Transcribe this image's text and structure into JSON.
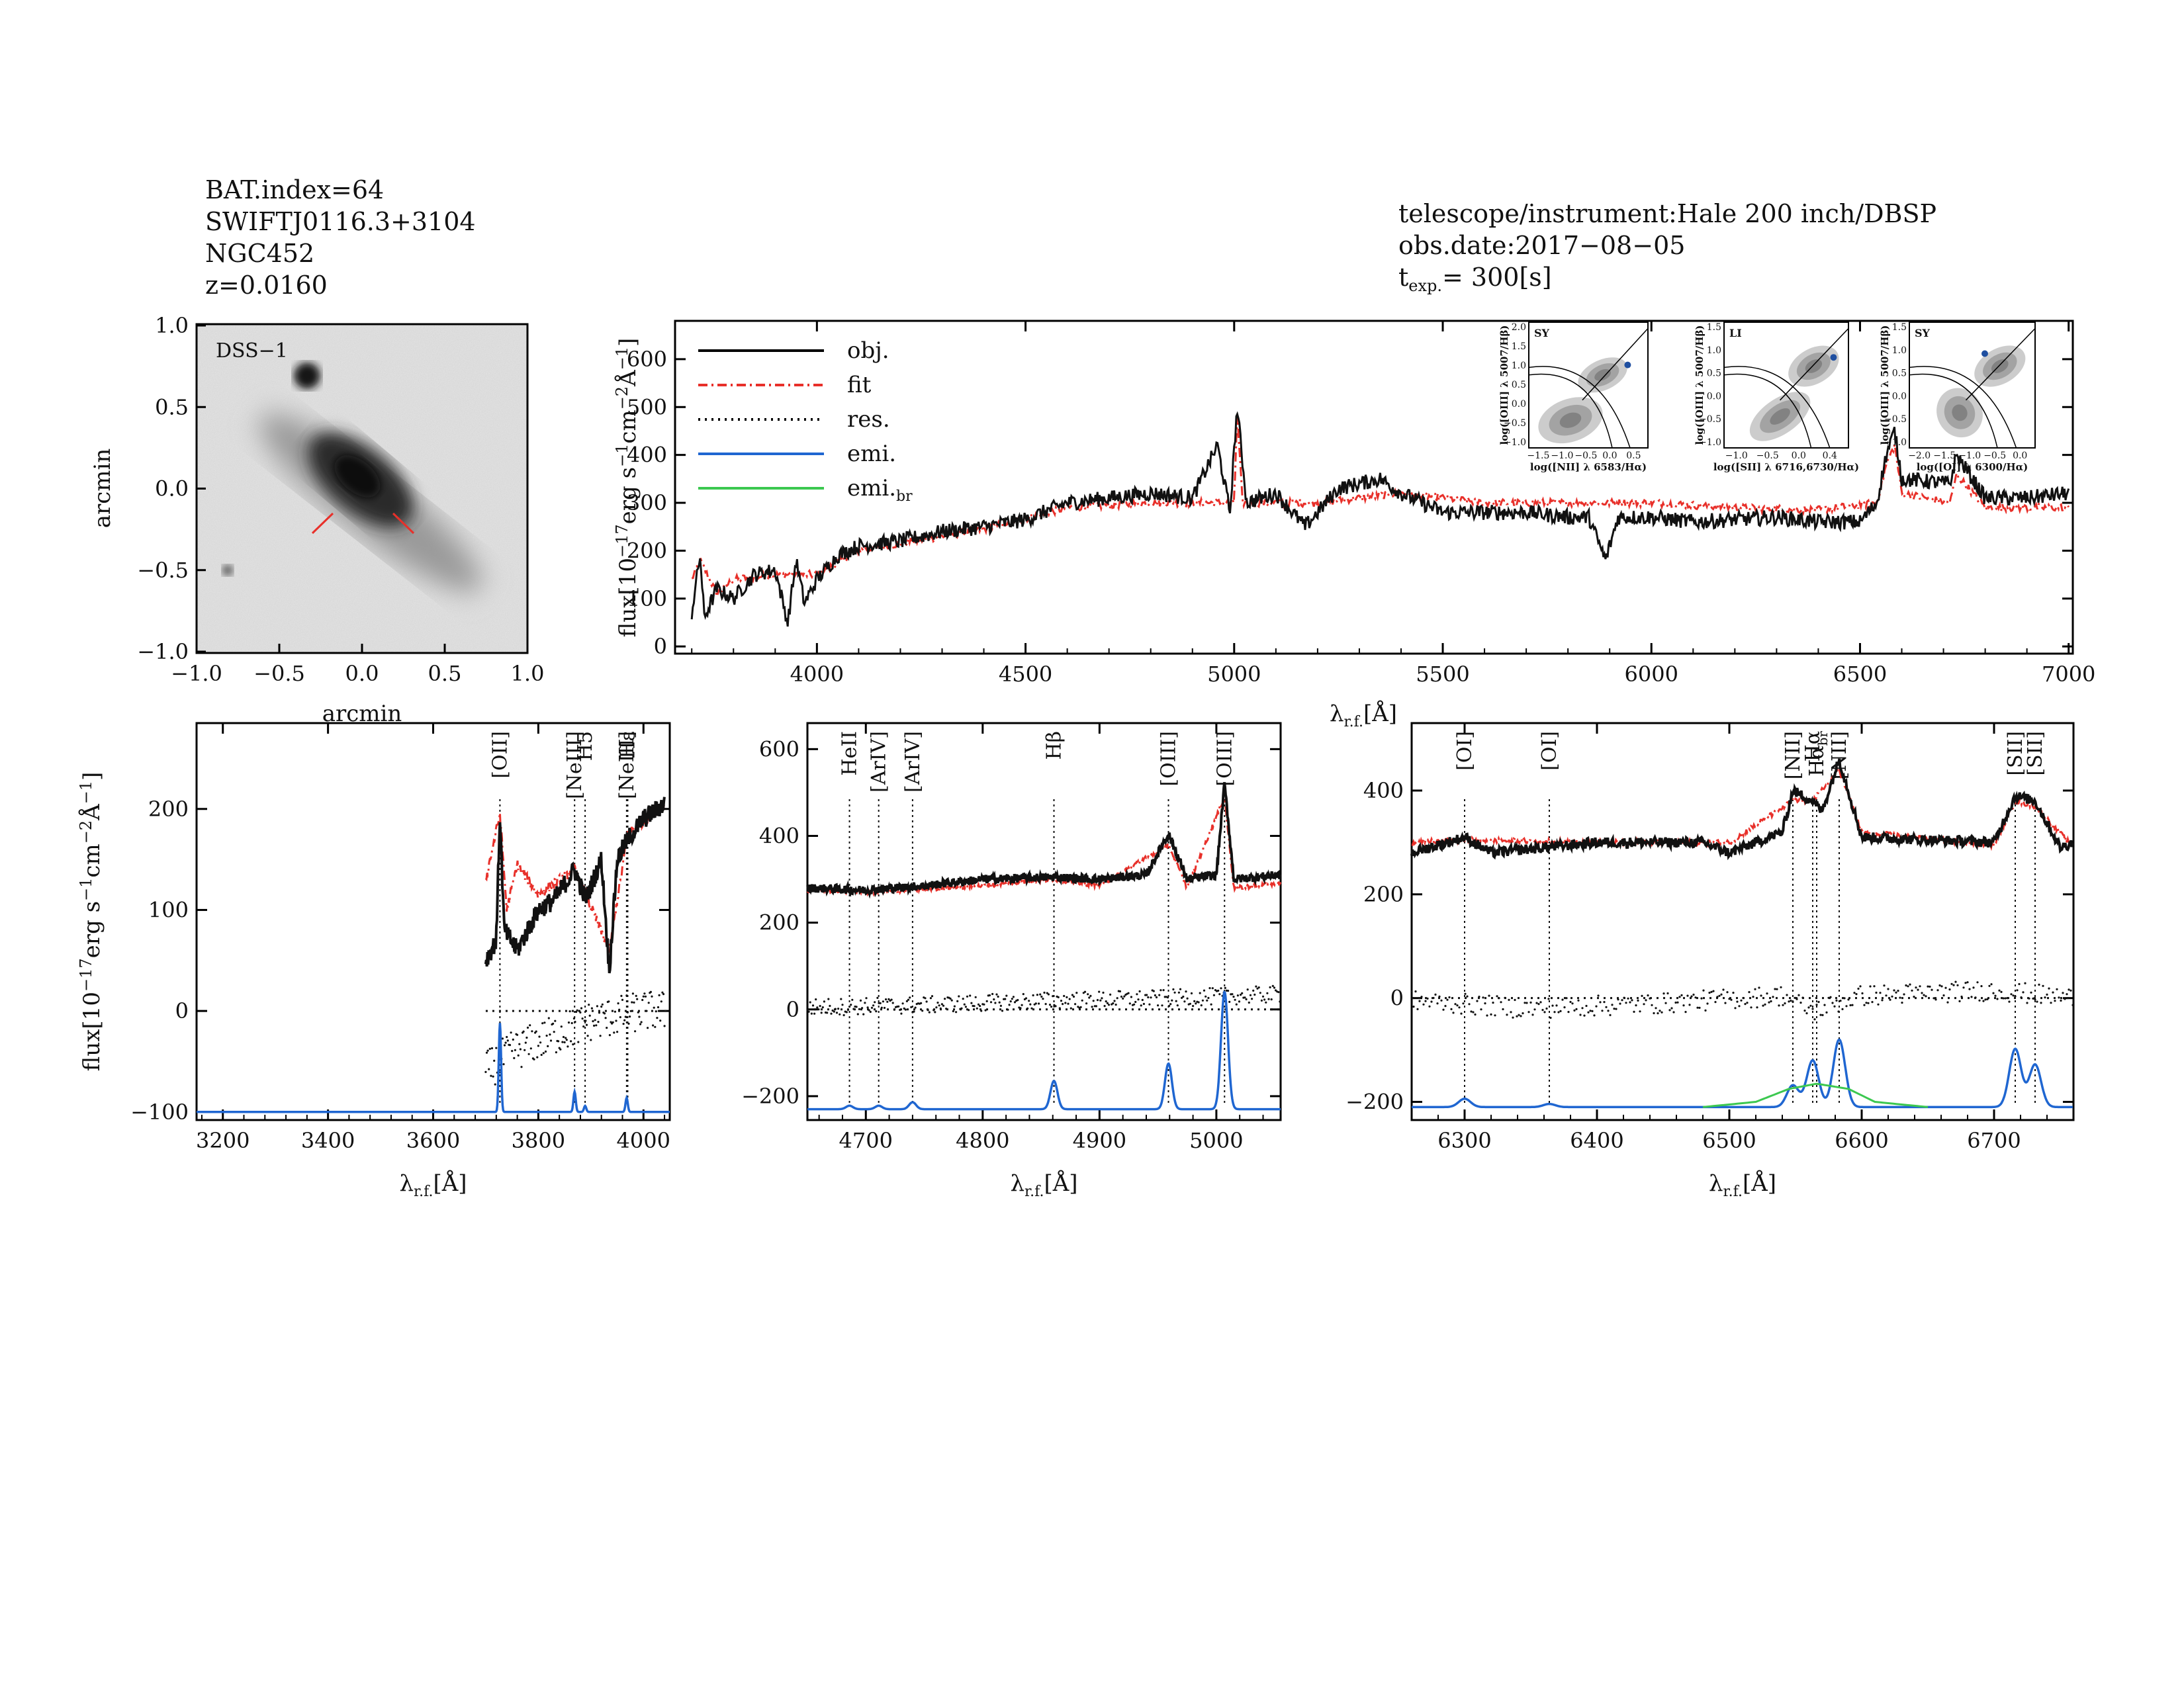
{
  "header": {
    "left": [
      "BAT.index=64",
      "SWIFTJ0116.3+3104",
      "NGC452",
      "z=0.0160"
    ],
    "right_1": "telescope/instrument:Hale 200 inch/DBSP",
    "right_2": "obs.date:2017−08−05",
    "texp_label": "t",
    "texp_sub": "exp.",
    "texp_value": "=  300[s]"
  },
  "image_panel": {
    "label": "DSS−1",
    "xlabel": "arcmin",
    "ylabel": "arcmin",
    "xticks": [
      "−1.0",
      "−0.5",
      "0.0",
      "0.5",
      "1.0"
    ],
    "yticks": [
      "1.0",
      "0.5",
      "0.0",
      "−0.5",
      "−1.0"
    ],
    "slit_color": "#e8302a"
  },
  "axis_labels": {
    "flux": "flux[10",
    "flux_exp": "−17",
    "flux_rest": "erg  s",
    "flux_unit_tail": "cm",
    "lambda": "λ",
    "lambda_sub": "r.f.",
    "lambda_unit": "[Å]"
  },
  "legend": [
    {
      "label": "obj.",
      "color": "#000000",
      "style": "solid"
    },
    {
      "label": "fit",
      "color": "#e8302a",
      "style": "dashdot"
    },
    {
      "label": "res.",
      "color": "#000000",
      "style": "dotted"
    },
    {
      "label": "emi.",
      "color": "#1f66d1",
      "style": "solid"
    },
    {
      "label": "emi.br",
      "color": "#3cc850",
      "style": "solid"
    }
  ],
  "bpt_insets": [
    {
      "tag": "SY",
      "xlabel": "log([NII] λ 6583/Hα)",
      "ylabel": "log([OIII] λ 5007/Hβ)",
      "xticks": [
        "−1.5",
        "−1.0",
        "−0.5",
        "0.0",
        "0.5"
      ],
      "yticks": [
        "2.0",
        "1.5",
        "1.0",
        "0.5",
        "0.0",
        "−0.5",
        "−1.0"
      ]
    },
    {
      "tag": "LI",
      "xlabel": "log([SII] λ 6716,6730/Hα)",
      "ylabel": "log([OIII] λ 5007/Hβ)",
      "xticks": [
        "−1.0",
        "−0.5",
        "0.0",
        "0.4"
      ],
      "yticks": [
        "1.5",
        "1.0",
        "0.5",
        "0.0",
        "−0.5",
        "−1.0"
      ]
    },
    {
      "tag": "SY",
      "xlabel": "log([OI] λ 6300/Hα)",
      "ylabel": "log([OIII] λ 5007/Hβ)",
      "xticks": [
        "−2.0",
        "−1.5",
        "−1.0",
        "−0.5",
        "0.0"
      ],
      "yticks": [
        "1.5",
        "1.0",
        "0.5",
        "0.0",
        "−0.5",
        "−1.0"
      ]
    }
  ],
  "chart_data": [
    {
      "type": "line",
      "xlim": [
        3660,
        7010
      ],
      "ylim": [
        -15,
        680
      ],
      "xticks": [
        4000,
        4500,
        5000,
        5500,
        6000,
        6500,
        7000
      ],
      "yticks": [
        0,
        100,
        200,
        300,
        400,
        500,
        600
      ],
      "series": [
        {
          "name": "obj.",
          "x": [
            3700,
            3720,
            3730,
            3760,
            3800,
            3850,
            3900,
            3930,
            3950,
            3970,
            4000,
            4050,
            4100,
            4200,
            4300,
            4400,
            4500,
            4600,
            4700,
            4800,
            4900,
            4960,
            4990,
            5007,
            5030,
            5100,
            5170,
            5250,
            5300,
            5350,
            5400,
            5450,
            5500,
            5600,
            5700,
            5800,
            5850,
            5890,
            5920,
            6000,
            6100,
            6200,
            6300,
            6400,
            6500,
            6540,
            6563,
            6583,
            6600,
            6716,
            6731,
            6800,
            6900,
            7000
          ],
          "y": [
            70,
            190,
            60,
            120,
            100,
            150,
            160,
            50,
            180,
            90,
            140,
            190,
            210,
            220,
            240,
            250,
            265,
            300,
            310,
            320,
            310,
            420,
            280,
            500,
            300,
            320,
            250,
            330,
            340,
            350,
            320,
            300,
            280,
            280,
            280,
            270,
            270,
            180,
            270,
            270,
            260,
            265,
            270,
            260,
            260,
            300,
            400,
            450,
            350,
            340,
            400,
            310,
            310,
            320
          ]
        },
        {
          "name": "fit",
          "x": [
            3700,
            3720,
            3760,
            3800,
            3900,
            4000,
            4100,
            4200,
            4400,
            4600,
            4800,
            5000,
            5007,
            5020,
            5200,
            5400,
            5600,
            5800,
            6000,
            6200,
            6400,
            6540,
            6563,
            6583,
            6600,
            6716,
            6731,
            6800,
            7000
          ],
          "y": [
            140,
            180,
            110,
            140,
            150,
            150,
            200,
            215,
            245,
            290,
            300,
            300,
            490,
            300,
            300,
            320,
            300,
            300,
            300,
            290,
            285,
            300,
            380,
            420,
            320,
            300,
            360,
            290,
            290
          ]
        }
      ]
    },
    {
      "type": "line",
      "xlim": [
        3150,
        4050
      ],
      "ylim": [
        -108,
        285
      ],
      "xticks": [
        3200,
        3400,
        3600,
        3800,
        4000
      ],
      "yticks": [
        -100,
        0,
        100,
        200
      ],
      "line_labels": [
        {
          "text": "[OII]",
          "x": 3727,
          "color": "#000000"
        },
        {
          "text": "[NeIII]",
          "x": 3869,
          "color": "#000000"
        },
        {
          "text": "H5",
          "x": 3889,
          "color": "#e8302a"
        },
        {
          "text": "[NeIII]",
          "x": 3968,
          "color": "#e8302a"
        },
        {
          "text": "Hε",
          "x": 3970,
          "color": "#e8302a"
        }
      ],
      "series": [
        {
          "name": "obj.",
          "x": [
            3700,
            3720,
            3727,
            3735,
            3760,
            3800,
            3830,
            3869,
            3890,
            3920,
            3935,
            3950,
            3970,
            4000,
            4040
          ],
          "y": [
            50,
            70,
            195,
            80,
            60,
            100,
            110,
            140,
            110,
            150,
            40,
            150,
            170,
            190,
            205
          ]
        },
        {
          "name": "fit",
          "x": [
            3700,
            3727,
            3740,
            3760,
            3800,
            3869,
            3890,
            3935,
            3970,
            4040
          ],
          "y": [
            130,
            195,
            100,
            145,
            115,
            140,
            115,
            60,
            175,
            205
          ]
        },
        {
          "name": "res.",
          "x": [
            3700,
            3750,
            3800,
            3850,
            3900,
            3950,
            4000,
            4040
          ],
          "y": [
            -60,
            -40,
            -30,
            -20,
            -10,
            -5,
            0,
            0
          ]
        },
        {
          "name": "emi.",
          "lines": [
            {
              "x": 3727,
              "amp": 88
            },
            {
              "x": 3869,
              "amp": 20
            },
            {
              "x": 3889,
              "amp": 6
            },
            {
              "x": 3968,
              "amp": 14
            }
          ],
          "baseline": -100
        }
      ]
    },
    {
      "type": "line",
      "xlim": [
        4650,
        5055
      ],
      "ylim": [
        -255,
        660
      ],
      "xticks": [
        4700,
        4800,
        4900,
        5000
      ],
      "yticks": [
        -200,
        0,
        200,
        400,
        600
      ],
      "line_labels": [
        {
          "text": "HeII",
          "x": 4686,
          "color": "#e8302a"
        },
        {
          "text": "[ArIV]",
          "x": 4711,
          "color": "#e8302a"
        },
        {
          "text": "[ArIV]",
          "x": 4740,
          "color": "#e8302a"
        },
        {
          "text": "Hβ",
          "x": 4861,
          "color": "#000000"
        },
        {
          "text": "[OIII]",
          "x": 4959,
          "color": "#000000"
        },
        {
          "text": "[OIII]",
          "x": 5007,
          "color": "#000000"
        }
      ],
      "series": [
        {
          "name": "obj.",
          "x": [
            4650,
            4700,
            4750,
            4800,
            4861,
            4900,
            4940,
            4959,
            4975,
            5000,
            5007,
            5015,
            5055
          ],
          "y": [
            280,
            275,
            285,
            300,
            305,
            300,
            310,
            405,
            300,
            310,
            520,
            300,
            310
          ]
        },
        {
          "name": "fit",
          "x": [
            4650,
            4700,
            4800,
            4861,
            4900,
            4959,
            4975,
            5007,
            5015,
            5055
          ],
          "y": [
            275,
            270,
            285,
            300,
            285,
            380,
            280,
            490,
            280,
            290
          ]
        },
        {
          "name": "res.",
          "x": [
            4650,
            4750,
            4850,
            4950,
            5055
          ],
          "y": [
            5,
            10,
            20,
            25,
            35
          ]
        },
        {
          "name": "emi.",
          "lines": [
            {
              "x": 4686,
              "amp": 8
            },
            {
              "x": 4711,
              "amp": 8
            },
            {
              "x": 4740,
              "amp": 16
            },
            {
              "x": 4861,
              "amp": 65
            },
            {
              "x": 4959,
              "amp": 105
            },
            {
              "x": 5007,
              "amp": 270
            }
          ],
          "baseline": -230
        }
      ]
    },
    {
      "type": "line",
      "xlim": [
        6260,
        6760
      ],
      "ylim": [
        -235,
        530
      ],
      "xticks": [
        6300,
        6400,
        6500,
        6600,
        6700
      ],
      "yticks": [
        -200,
        0,
        200,
        400
      ],
      "line_labels": [
        {
          "text": "[OI]",
          "x": 6300,
          "color": "#000000"
        },
        {
          "text": "[OI]",
          "x": 6364,
          "color": "#000000"
        },
        {
          "text": "[NII]",
          "x": 6548,
          "color": "#000000"
        },
        {
          "text": "Hα",
          "x": 6563,
          "color": "#000000"
        },
        {
          "text": "Hα",
          "x": 6566,
          "color": "#000000",
          "sub": "br"
        },
        {
          "text": "[NII]",
          "x": 6583,
          "color": "#000000"
        },
        {
          "text": "[SII]",
          "x": 6716,
          "color": "#000000"
        },
        {
          "text": "[SII]",
          "x": 6731,
          "color": "#000000"
        }
      ],
      "series": [
        {
          "name": "obj.",
          "x": [
            6260,
            6300,
            6320,
            6400,
            6480,
            6500,
            6540,
            6548,
            6563,
            6570,
            6583,
            6600,
            6700,
            6716,
            6731,
            6750,
            6760
          ],
          "y": [
            280,
            310,
            280,
            300,
            300,
            280,
            320,
            400,
            380,
            360,
            460,
            310,
            300,
            390,
            380,
            290,
            300
          ]
        },
        {
          "name": "fit",
          "x": [
            6260,
            6300,
            6400,
            6500,
            6548,
            6563,
            6583,
            6600,
            6700,
            6716,
            6731,
            6760
          ],
          "y": [
            300,
            305,
            300,
            300,
            380,
            380,
            440,
            320,
            295,
            380,
            370,
            290
          ]
        },
        {
          "name": "res.",
          "x": [
            6260,
            6350,
            6450,
            6540,
            6563,
            6600,
            6700,
            6760
          ],
          "y": [
            -5,
            -20,
            -10,
            5,
            -25,
            5,
            15,
            0
          ]
        },
        {
          "name": "emi.",
          "lines": [
            {
              "x": 6300,
              "amp": 16
            },
            {
              "x": 6364,
              "amp": 6
            },
            {
              "x": 6548,
              "amp": 42
            },
            {
              "x": 6563,
              "amp": 90
            },
            {
              "x": 6583,
              "amp": 130
            },
            {
              "x": 6716,
              "amp": 112
            },
            {
              "x": 6731,
              "amp": 82
            }
          ],
          "baseline": -210
        },
        {
          "name": "emi.br",
          "x": [
            6480,
            6520,
            6545,
            6566,
            6590,
            6610,
            6650
          ],
          "y": [
            -210,
            -200,
            -175,
            -165,
            -175,
            -200,
            -210
          ]
        }
      ]
    }
  ]
}
